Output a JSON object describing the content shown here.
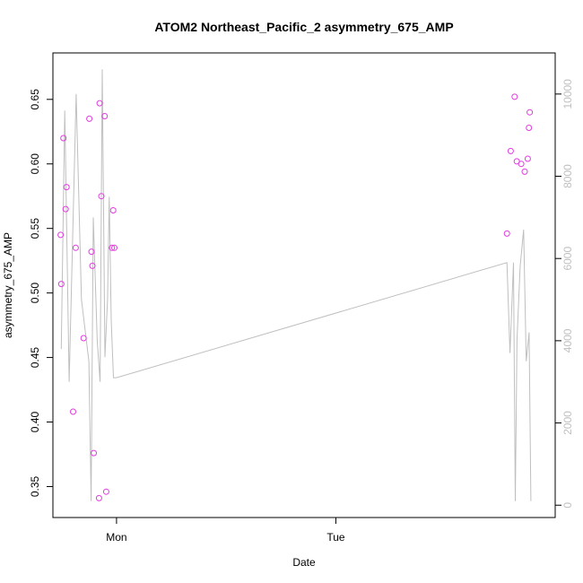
{
  "chart_data": {
    "type": "scatter",
    "title": "ATOM2 Northeast_Pacific_2 asymmetry_675_AMP",
    "xlabel": "Date",
    "ylabel": "asymmetry_675_AMP",
    "y_ticks": [
      "0.35",
      "0.40",
      "0.45",
      "0.50",
      "0.55",
      "0.60",
      "0.65"
    ],
    "y_tick_values": [
      0.35,
      0.4,
      0.45,
      0.5,
      0.55,
      0.6,
      0.65
    ],
    "x_ticks": [
      "Mon",
      "Tue"
    ],
    "x_tick_values": [
      0.0,
      1.0
    ],
    "y2_ticks": [
      "0",
      "2000",
      "4000",
      "6000",
      "8000",
      "10000"
    ],
    "y2_tick_values": [
      0,
      2000,
      4000,
      6000,
      8000,
      10000
    ],
    "xlim": [
      -0.29,
      2.0
    ],
    "ylim": [
      0.326,
      0.686
    ],
    "y2lim": [
      -300,
      11000
    ],
    "colors": {
      "points": "#e23be0",
      "line": "#bfbfbf",
      "axis": "#000000"
    },
    "series": [
      {
        "role": "points",
        "axis": "left",
        "x": [
          -0.255,
          -0.252,
          -0.242,
          -0.232,
          -0.228,
          -0.198,
          -0.186,
          -0.15,
          -0.124,
          -0.114,
          -0.11,
          -0.104,
          -0.08,
          -0.077,
          -0.069,
          -0.054,
          -0.047,
          -0.021,
          -0.015,
          -0.01,
          1.78,
          1.797,
          1.815,
          1.825,
          1.845,
          1.861,
          1.875,
          1.88,
          1.884
        ],
        "y": [
          0.545,
          0.507,
          0.62,
          0.565,
          0.582,
          0.408,
          0.535,
          0.465,
          0.635,
          0.532,
          0.521,
          0.376,
          0.341,
          0.647,
          0.575,
          0.637,
          0.346,
          0.535,
          0.564,
          0.535,
          0.546,
          0.61,
          0.652,
          0.602,
          0.6,
          0.594,
          0.604,
          0.628,
          0.64
        ]
      },
      {
        "role": "line",
        "axis": "right",
        "x": [
          -0.252,
          -0.236,
          -0.216,
          -0.184,
          -0.16,
          -0.126,
          -0.116,
          -0.106,
          -0.088,
          -0.075,
          -0.065,
          -0.053,
          -0.041,
          -0.033,
          -0.024,
          -0.014,
          0.0,
          1.78,
          1.794,
          1.81,
          1.818,
          1.826,
          1.84,
          1.856,
          1.868,
          1.881,
          1.889
        ],
        "y": [
          3800,
          9600,
          3000,
          10000,
          5000,
          3500,
          100,
          7000,
          4000,
          3000,
          10600,
          3600,
          5000,
          7500,
          4500,
          3100,
          3100,
          5900,
          3700,
          5900,
          100,
          4000,
          5800,
          6700,
          3500,
          4200,
          100
        ]
      }
    ]
  }
}
